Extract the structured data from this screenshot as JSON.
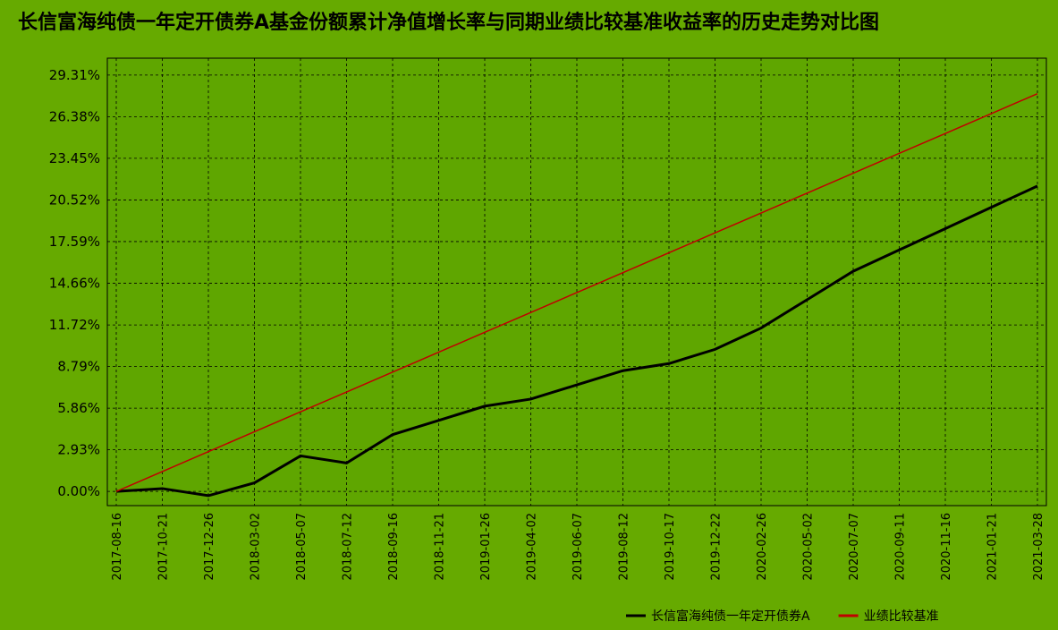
{
  "chart_data": {
    "type": "line",
    "title": "长信富海纯债一年定开债券A基金份额累计净值增长率与同期业绩比较基准收益率的历史走势对比图",
    "categories": [
      "2017-08-16",
      "2017-10-21",
      "2017-12-26",
      "2018-03-02",
      "2018-05-07",
      "2018-07-12",
      "2018-09-16",
      "2018-11-21",
      "2019-01-26",
      "2019-04-02",
      "2019-06-07",
      "2019-08-12",
      "2019-10-17",
      "2019-12-22",
      "2020-02-26",
      "2020-05-02",
      "2020-07-07",
      "2020-09-11",
      "2020-11-16",
      "2021-01-21",
      "2021-03-28"
    ],
    "series": [
      {
        "name": "长信富海纯债一年定开债券A",
        "color": "#000000",
        "values": [
          0.0,
          0.2,
          -0.3,
          0.6,
          2.5,
          2.0,
          4.0,
          5.0,
          6.0,
          6.5,
          7.5,
          8.5,
          9.0,
          10.0,
          11.5,
          13.5,
          15.5,
          17.0,
          18.5,
          20.0,
          21.5
        ]
      },
      {
        "name": "业绩比较基准",
        "color": "#c00000",
        "values": [
          0.0,
          1.4,
          2.8,
          4.2,
          5.6,
          7.0,
          8.4,
          9.8,
          11.2,
          12.6,
          14.0,
          15.4,
          16.8,
          18.2,
          19.6,
          21.0,
          22.4,
          23.8,
          25.2,
          26.6,
          28.0
        ]
      }
    ],
    "ylim": [
      -1.0,
      30.5
    ],
    "yticks": [
      {
        "value": 0,
        "label": "0.00%"
      },
      {
        "value": 2.93,
        "label": "2.93%"
      },
      {
        "value": 5.86,
        "label": "5.86%"
      },
      {
        "value": 8.79,
        "label": "8.79%"
      },
      {
        "value": 11.72,
        "label": "11.72%"
      },
      {
        "value": 14.66,
        "label": "14.66%"
      },
      {
        "value": 17.59,
        "label": "17.59%"
      },
      {
        "value": 20.52,
        "label": "20.52%"
      },
      {
        "value": 23.45,
        "label": "23.45%"
      },
      {
        "value": 26.38,
        "label": "26.38%"
      },
      {
        "value": 29.31,
        "label": "29.31%"
      }
    ],
    "grid": true
  }
}
